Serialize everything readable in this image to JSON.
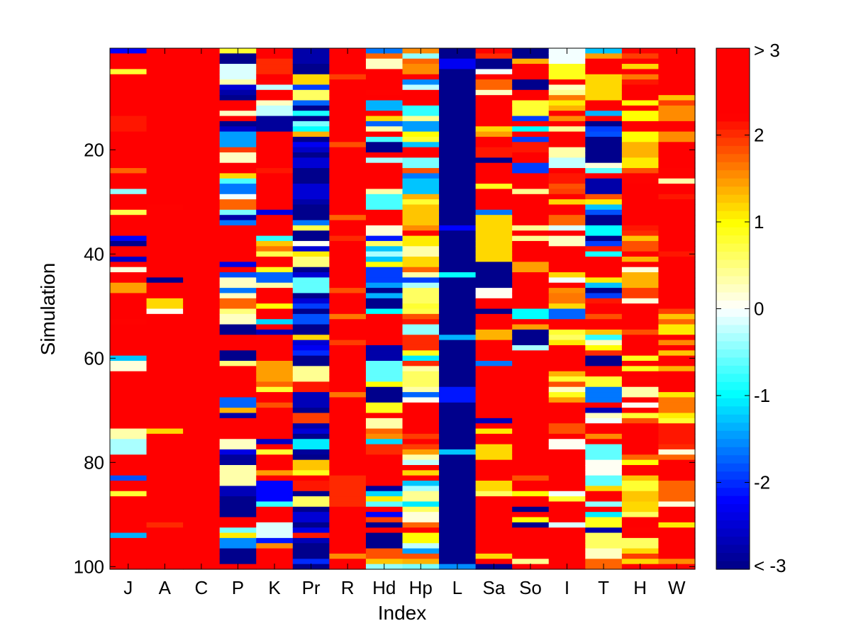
{
  "chart_data": {
    "type": "heatmap",
    "title": "",
    "xlabel": "Index",
    "ylabel": "Simulation",
    "x_categories": [
      "J",
      "A",
      "C",
      "P",
      "K",
      "Pr",
      "R",
      "Hd",
      "Hp",
      "L",
      "Sa",
      "So",
      "I",
      "T",
      "H",
      "W"
    ],
    "y_range": [
      1,
      100
    ],
    "y_ticks": [
      20,
      40,
      60,
      80,
      100
    ],
    "colorbar": {
      "range": [
        -3,
        3
      ],
      "ticks": [
        -3,
        -2,
        -1,
        0,
        1,
        2,
        3
      ],
      "tick_labels": [
        "< -3",
        "-2",
        "-1",
        "0",
        "1",
        "2",
        "> 3"
      ],
      "colormap": "jet-with-white-center",
      "levels": 64
    },
    "columns": {
      "J": "mostly >3 with scattered lower values (yellow to blue) in some simulations",
      "A": ">3 for nearly all simulations; isolated exceptions near 31, 45, 49, 51, 74, 92",
      "C": ">3 for all simulations",
      "P": "highly variable, full range from < -3 to > 3",
      "K": "mostly 1 to >3 with a few negative values",
      "Pr": "mostly < -3 with scattered values up to 2",
      "R": "mostly >3, occasionally 1.5 to 2.5",
      "Hd": "highly variable, full range",
      "Hp": "mostly 0 to 2.5, occasional negative values",
      "L": "< -3 for nearly all simulations; a few around -1 to -2",
      "Sa": "mostly 1.5 to >3 with scattered negative values",
      "So": "mostly 1.5 to >3 with scattered negative values",
      "I": "mostly 0.5 to 3",
      "T": "highly variable, full range",
      "H": "mostly 1 to 3",
      "W": "mostly 1.5 to 3"
    },
    "colors": {
      "background": "#ffffff",
      "axis": "#000000"
    }
  }
}
